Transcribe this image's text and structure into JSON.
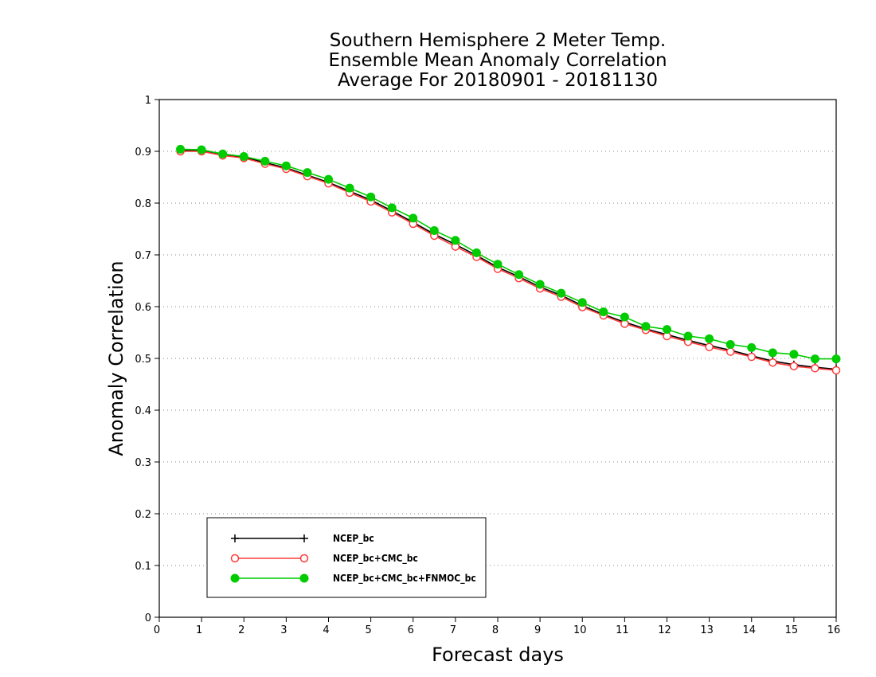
{
  "chart_data": {
    "type": "line",
    "title": [
      "Southern Hemisphere 2 Meter Temp.",
      "Ensemble Mean Anomaly Correlation",
      "Average For 20180901 - 20181130"
    ],
    "xlabel": "Forecast days",
    "ylabel": "Anomaly Correlation",
    "xlim": [
      0,
      16
    ],
    "ylim": [
      0,
      1
    ],
    "x_ticks": [
      "0",
      "1",
      "2",
      "3",
      "4",
      "5",
      "6",
      "7",
      "8",
      "9",
      "10",
      "11",
      "12",
      "13",
      "14",
      "15",
      "16"
    ],
    "y_ticks": [
      "0",
      "0.1",
      "0.2",
      "0.3",
      "0.4",
      "0.5",
      "0.6",
      "0.7",
      "0.8",
      "0.9",
      "1"
    ],
    "grid": "dotted horizontal",
    "legend_position": "bottom-left",
    "x": [
      0.5,
      1,
      1.5,
      2,
      2.5,
      3,
      3.5,
      4,
      4.5,
      5,
      5.5,
      6,
      6.5,
      7,
      7.5,
      8,
      8.5,
      9,
      9.5,
      10,
      10.5,
      11,
      11.5,
      12,
      12.5,
      13,
      13.5,
      14,
      14.5,
      15,
      15.5,
      16
    ],
    "series": [
      {
        "name": "NCEP_bc",
        "color": "#000000",
        "marker": "plus",
        "values": [
          0.902,
          0.902,
          0.893,
          0.889,
          0.878,
          0.868,
          0.854,
          0.84,
          0.823,
          0.806,
          0.785,
          0.763,
          0.74,
          0.72,
          0.699,
          0.676,
          0.658,
          0.638,
          0.622,
          0.602,
          0.585,
          0.57,
          0.557,
          0.546,
          0.535,
          0.525,
          0.516,
          0.505,
          0.495,
          0.488,
          0.483,
          0.479
        ]
      },
      {
        "name": "NCEP_bc+CMC_bc",
        "color": "#ff3b3b",
        "marker": "open-circle",
        "values": [
          0.9,
          0.9,
          0.892,
          0.887,
          0.876,
          0.866,
          0.852,
          0.838,
          0.82,
          0.803,
          0.782,
          0.76,
          0.737,
          0.716,
          0.696,
          0.673,
          0.655,
          0.635,
          0.619,
          0.599,
          0.583,
          0.567,
          0.555,
          0.543,
          0.532,
          0.522,
          0.513,
          0.503,
          0.492,
          0.485,
          0.481,
          0.477
        ]
      },
      {
        "name": "NCEP_bc+CMC_bc+FNMOC_bc",
        "color": "#00cc00",
        "marker": "filled-circle",
        "values": [
          0.904,
          0.903,
          0.895,
          0.89,
          0.881,
          0.872,
          0.859,
          0.846,
          0.829,
          0.812,
          0.791,
          0.771,
          0.747,
          0.728,
          0.704,
          0.682,
          0.662,
          0.643,
          0.626,
          0.608,
          0.59,
          0.58,
          0.562,
          0.556,
          0.543,
          0.538,
          0.527,
          0.521,
          0.511,
          0.508,
          0.499,
          0.499
        ]
      }
    ]
  }
}
